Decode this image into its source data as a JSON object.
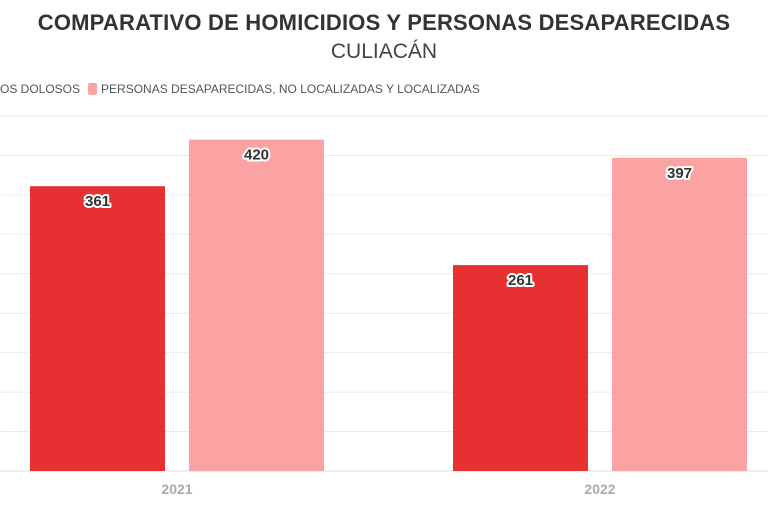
{
  "chart_data": {
    "type": "bar",
    "title": "COMPARATIVO DE HOMICIDIOS Y PERSONAS DESAPARECIDAS",
    "subtitle": "CULIACÁN",
    "categories": [
      "2021",
      "2022"
    ],
    "series": [
      {
        "name": "OS DOLOSOS",
        "color": "#e63032",
        "values": [
          361,
          261
        ]
      },
      {
        "name": "PERSONAS DESAPARECIDAS, NO LOCALIZADAS Y LOCALIZADAS",
        "color": "#fba3a3",
        "values": [
          420,
          397
        ]
      }
    ],
    "xlabel": "",
    "ylabel": "",
    "ylim": [
      0,
      450
    ],
    "grid": true,
    "grid_step": 50,
    "legend_position": "top-left",
    "data_labels": true
  }
}
